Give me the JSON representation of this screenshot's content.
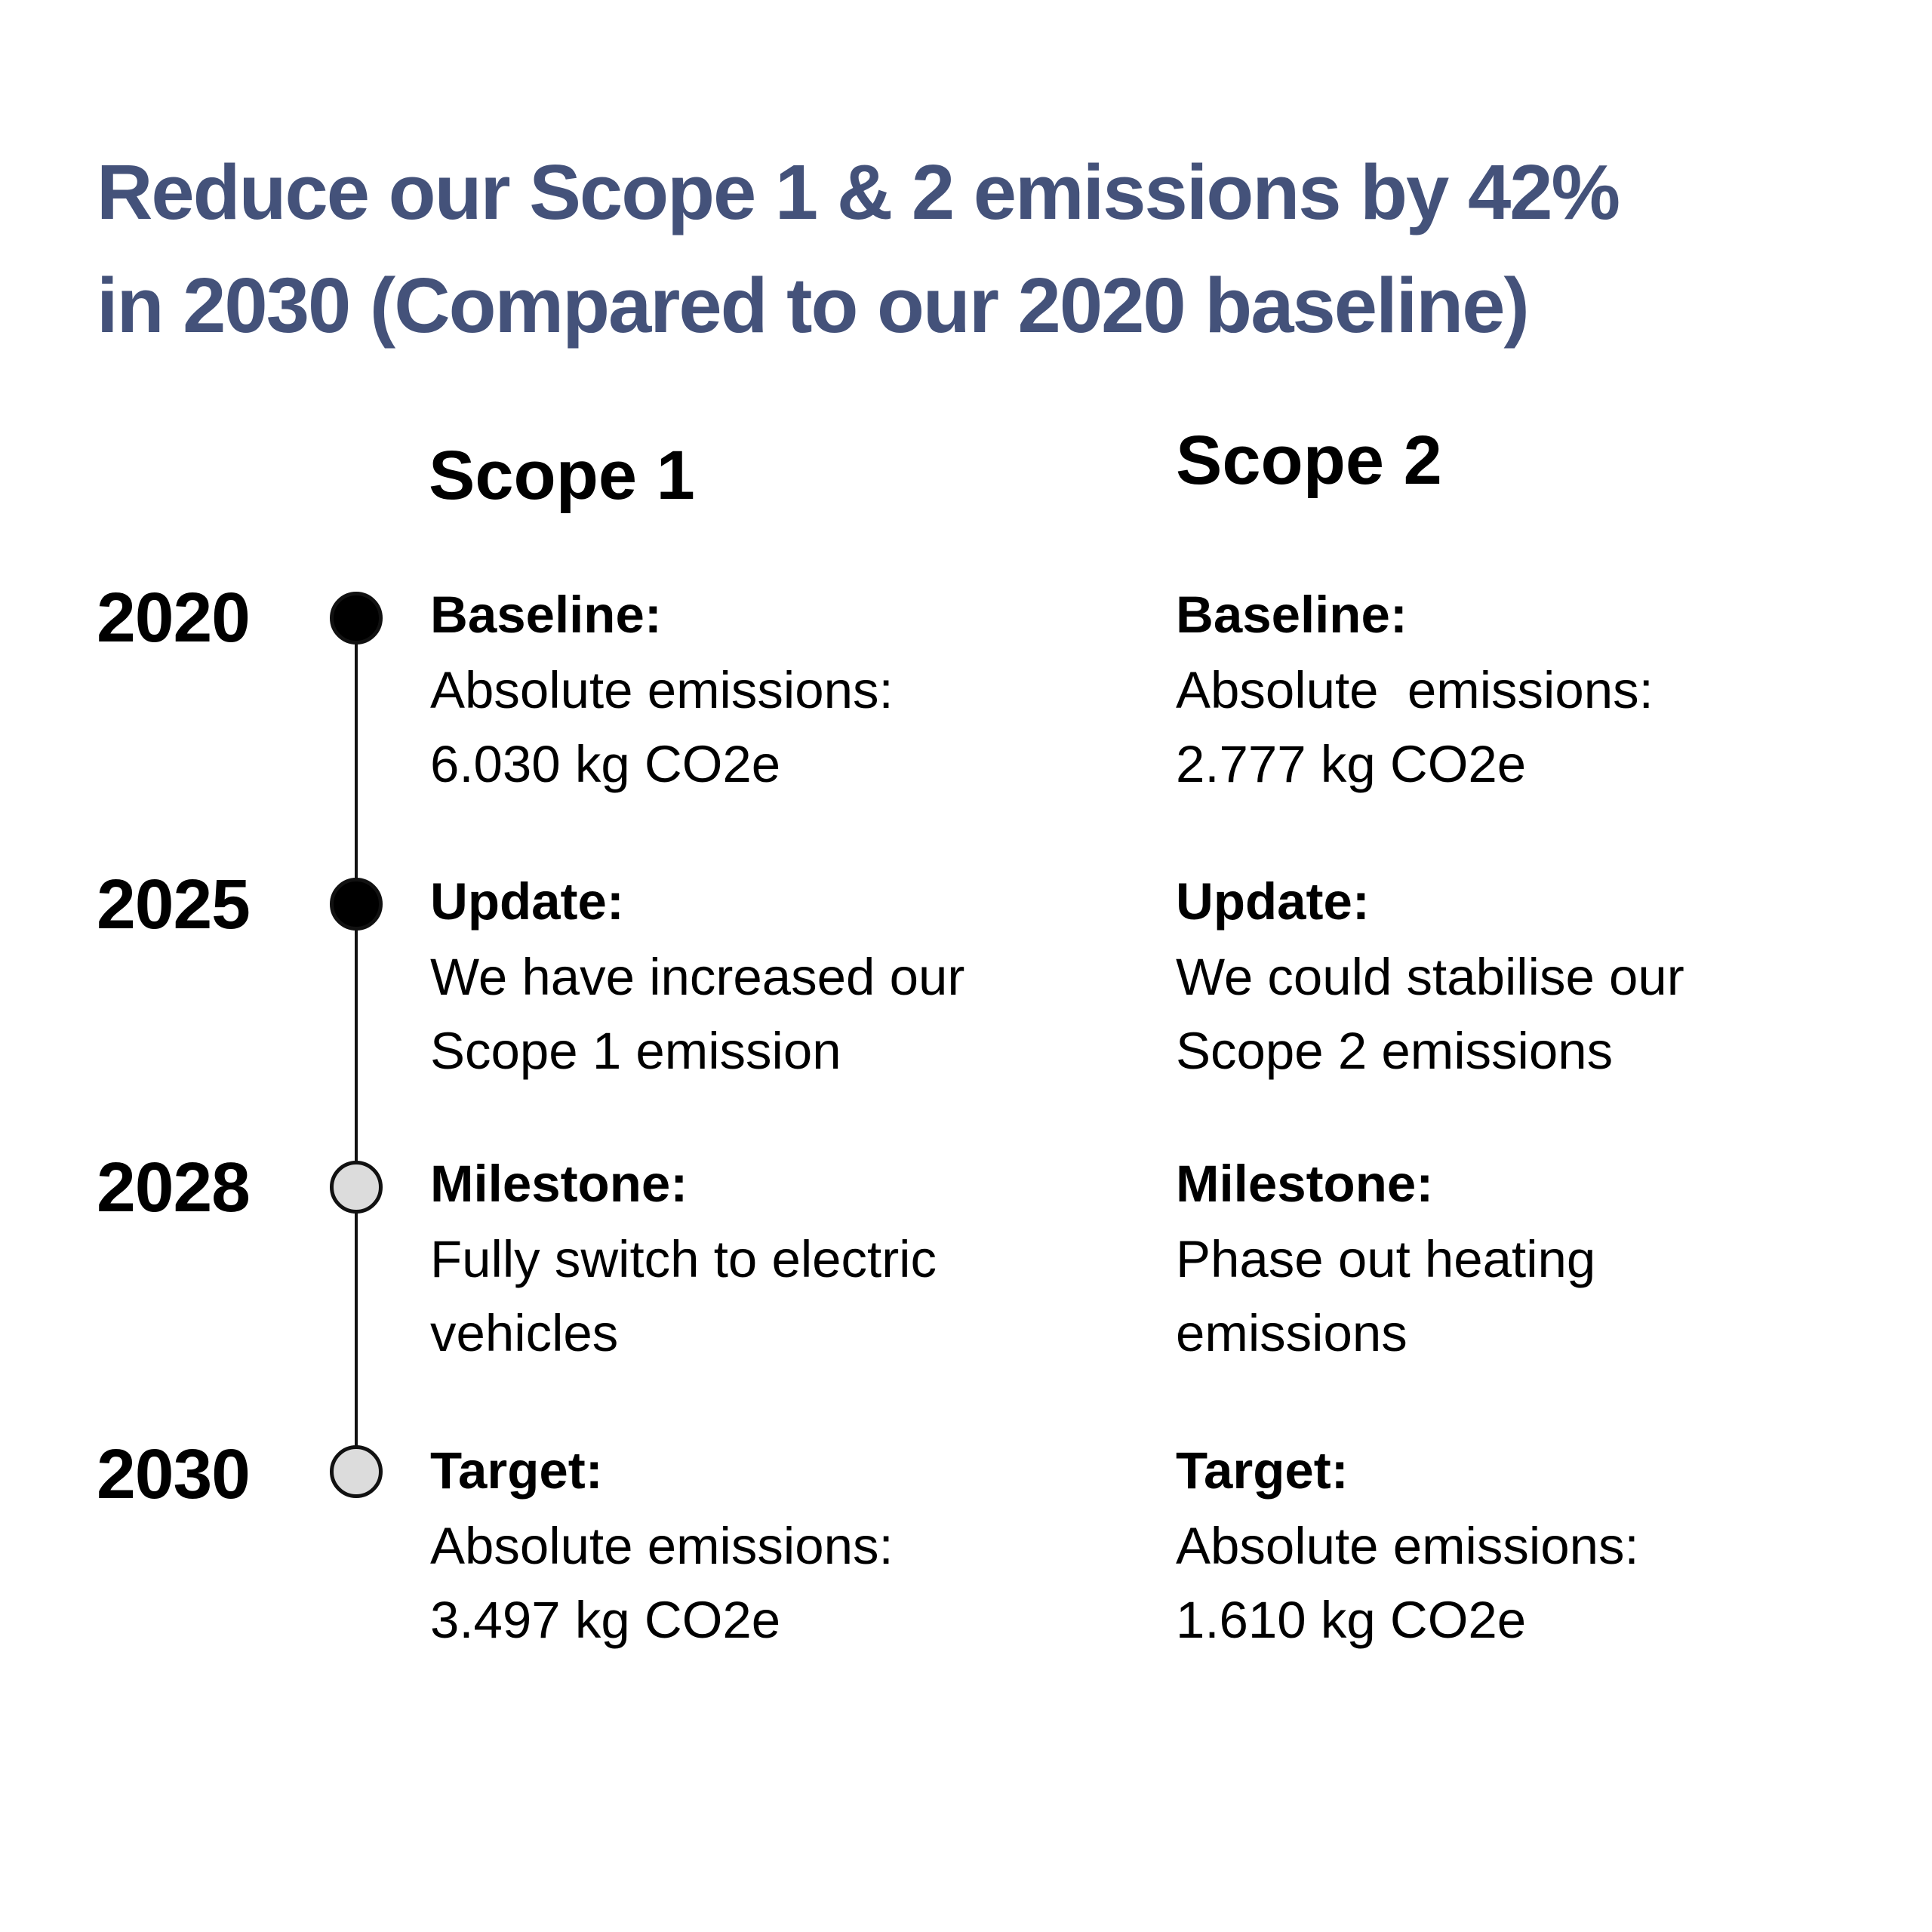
{
  "title": {
    "line1": "Reduce our Scope 1 & 2 emissions by 42%",
    "line2": "in 2030 (Compared to our 2020 baseline)"
  },
  "colors": {
    "title": "#44527a",
    "text": "#000000",
    "dot_filled": "#000000",
    "dot_hollow": "#dcdcdc"
  },
  "scope1": {
    "heading": "Scope 1",
    "entries": [
      {
        "label": "Baseline:",
        "line1": "Absolute emissions:",
        "line2": "6.030 kg CO2e"
      },
      {
        "label": "Update:",
        "line1": "We have increased our",
        "line2": "Scope 1 emission"
      },
      {
        "label": "Milestone:",
        "line1": "Fully switch to electric",
        "line2": "vehicles"
      },
      {
        "label": "Target:",
        "line1": "Absolute emissions:",
        "line2": "3.497 kg CO2e"
      }
    ]
  },
  "scope2": {
    "heading": "Scope 2",
    "entries": [
      {
        "label": "Baseline:",
        "line1": "Absolute  emissions:",
        "line2": "2.777 kg CO2e"
      },
      {
        "label": "Update:",
        "line1": "We could stabilise our",
        "line2": "Scope 2 emissions"
      },
      {
        "label": "Milestone:",
        "line1": "Phase out heating",
        "line2": "emissions"
      },
      {
        "label": "Target:",
        "line1": "Absolute emissions:",
        "line2": "1.610 kg CO2e"
      }
    ]
  },
  "timeline": [
    {
      "year": "2020",
      "status": "completed"
    },
    {
      "year": "2025",
      "status": "completed"
    },
    {
      "year": "2028",
      "status": "upcoming"
    },
    {
      "year": "2030",
      "status": "upcoming"
    }
  ]
}
